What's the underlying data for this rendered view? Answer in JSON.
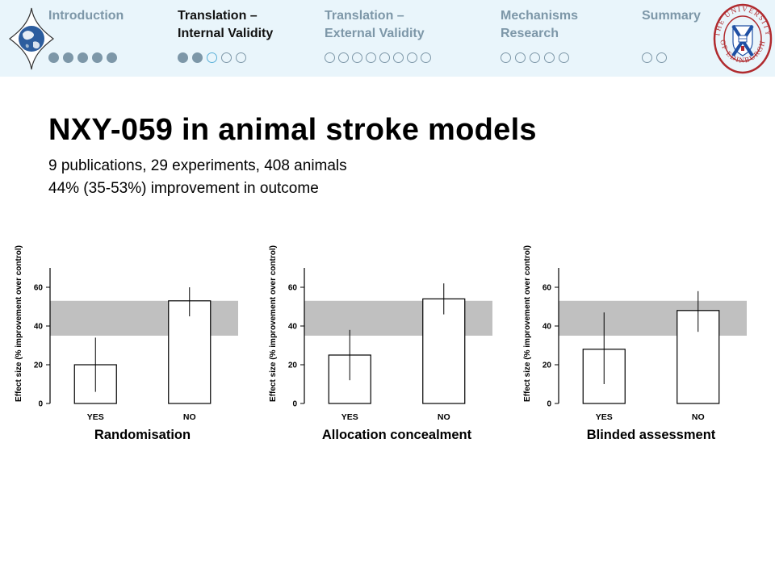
{
  "nav": {
    "sections": [
      {
        "label": "Introduction",
        "state": "dim",
        "dots": [
          "filled",
          "filled",
          "filled",
          "filled",
          "filled"
        ]
      },
      {
        "label": "Translation –\nInternal Validity",
        "state": "active",
        "dots": [
          "filled",
          "filled",
          "current",
          "empty",
          "empty"
        ]
      },
      {
        "label": "Translation –\nExternal Validity",
        "state": "dim",
        "dots": [
          "empty",
          "empty",
          "empty",
          "empty",
          "empty",
          "empty",
          "empty",
          "empty"
        ]
      },
      {
        "label": "Mechanisms\nResearch",
        "state": "dim",
        "dots": [
          "empty",
          "empty",
          "empty",
          "empty",
          "empty"
        ]
      },
      {
        "label": "Summary",
        "state": "dim",
        "dots": [
          "empty",
          "empty"
        ]
      }
    ],
    "logo_icon": "globe-icon",
    "crest_icon": "university-crest-icon",
    "crest_top_text": "THE UNIVERSITY",
    "crest_bottom_text": "OF EDINBURGH"
  },
  "slide": {
    "title": "NXY-059 in animal stroke models",
    "subtitle_lines": [
      "9 publications, 29 experiments, 408 animals",
      "44% (35-53%) improvement in outcome"
    ]
  },
  "colors": {
    "header_bg": "#e9f5fb",
    "nav_dim": "#7d97a8",
    "nav_current_dot": "#5ab0d8",
    "band": "#c0c0c0",
    "crest_red": "#b02a2e",
    "crest_blue": "#1e4fa3"
  },
  "chart_data": [
    {
      "type": "bar",
      "title": "Randomisation",
      "ylabel": "Effect size (% improvement over control)",
      "categories": [
        "YES",
        "NO"
      ],
      "values": [
        20,
        53
      ],
      "error_bars": [
        [
          6,
          34
        ],
        [
          45,
          60
        ]
      ],
      "ylim": [
        0,
        70
      ],
      "yticks": [
        0,
        20,
        40,
        60
      ],
      "reference_band": [
        35,
        53
      ],
      "grid": false
    },
    {
      "type": "bar",
      "title": "Allocation concealment",
      "ylabel": "Effect size (% improvement over control)",
      "categories": [
        "YES",
        "NO"
      ],
      "values": [
        25,
        54
      ],
      "error_bars": [
        [
          12,
          38
        ],
        [
          46,
          62
        ]
      ],
      "ylim": [
        0,
        70
      ],
      "yticks": [
        0,
        20,
        40,
        60
      ],
      "reference_band": [
        35,
        53
      ],
      "grid": false
    },
    {
      "type": "bar",
      "title": "Blinded assessment",
      "ylabel": "Effect size (% improvement over control)",
      "categories": [
        "YES",
        "NO"
      ],
      "values": [
        28,
        48
      ],
      "error_bars": [
        [
          10,
          47
        ],
        [
          37,
          58
        ]
      ],
      "ylim": [
        0,
        70
      ],
      "yticks": [
        0,
        20,
        40,
        60
      ],
      "reference_band": [
        35,
        53
      ],
      "grid": false
    }
  ]
}
